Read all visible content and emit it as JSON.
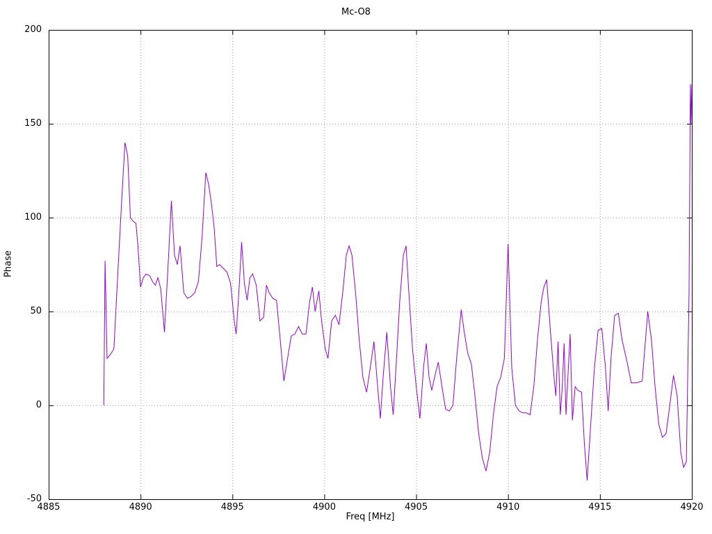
{
  "title": "Mc-O8",
  "xlabel": "Freq [MHz]",
  "ylabel": "Phase",
  "chart_data": {
    "type": "line",
    "title": "Mc-O8",
    "xlabel": "Freq [MHz]",
    "ylabel": "Phase",
    "xlim": [
      4885,
      4920
    ],
    "ylim": [
      -50,
      200
    ],
    "x_ticks": [
      4885,
      4890,
      4895,
      4900,
      4905,
      4910,
      4915,
      4920
    ],
    "y_ticks": [
      -50,
      0,
      50,
      100,
      150,
      200
    ],
    "grid": true,
    "legend": "none",
    "line_color": "#9400d3",
    "grid_color": "#9a9a9a",
    "border_color": "#000000",
    "points": [
      [
        4888.0,
        0
      ],
      [
        4888.07,
        77
      ],
      [
        4888.18,
        25
      ],
      [
        4888.35,
        27
      ],
      [
        4888.55,
        30
      ],
      [
        4888.75,
        68
      ],
      [
        4888.95,
        105
      ],
      [
        4889.15,
        140
      ],
      [
        4889.3,
        133
      ],
      [
        4889.45,
        100
      ],
      [
        4889.6,
        98
      ],
      [
        4889.75,
        97
      ],
      [
        4889.85,
        86
      ],
      [
        4890.0,
        63
      ],
      [
        4890.15,
        68
      ],
      [
        4890.3,
        70
      ],
      [
        4890.5,
        69
      ],
      [
        4890.65,
        66
      ],
      [
        4890.8,
        64
      ],
      [
        4890.95,
        68
      ],
      [
        4891.1,
        62
      ],
      [
        4891.3,
        39
      ],
      [
        4891.5,
        75
      ],
      [
        4891.68,
        109
      ],
      [
        4891.85,
        80
      ],
      [
        4892.0,
        75
      ],
      [
        4892.15,
        85
      ],
      [
        4892.35,
        60
      ],
      [
        4892.55,
        57
      ],
      [
        4892.75,
        58
      ],
      [
        4892.95,
        60
      ],
      [
        4893.15,
        66
      ],
      [
        4893.35,
        90
      ],
      [
        4893.55,
        124
      ],
      [
        4893.7,
        118
      ],
      [
        4893.85,
        108
      ],
      [
        4894.0,
        95
      ],
      [
        4894.15,
        74
      ],
      [
        4894.3,
        75
      ],
      [
        4894.5,
        73
      ],
      [
        4894.7,
        71
      ],
      [
        4894.9,
        65
      ],
      [
        4895.1,
        45
      ],
      [
        4895.2,
        38
      ],
      [
        4895.35,
        60
      ],
      [
        4895.5,
        87
      ],
      [
        4895.65,
        65
      ],
      [
        4895.8,
        56
      ],
      [
        4895.95,
        68
      ],
      [
        4896.1,
        70
      ],
      [
        4896.3,
        64
      ],
      [
        4896.5,
        45
      ],
      [
        4896.7,
        47
      ],
      [
        4896.85,
        64
      ],
      [
        4897.0,
        60
      ],
      [
        4897.2,
        57
      ],
      [
        4897.4,
        56
      ],
      [
        4897.6,
        35
      ],
      [
        4897.8,
        13
      ],
      [
        4898.0,
        25
      ],
      [
        4898.2,
        37
      ],
      [
        4898.4,
        38
      ],
      [
        4898.6,
        42
      ],
      [
        4898.8,
        38
      ],
      [
        4899.0,
        38
      ],
      [
        4899.2,
        55
      ],
      [
        4899.35,
        63
      ],
      [
        4899.5,
        50
      ],
      [
        4899.7,
        61
      ],
      [
        4899.85,
        45
      ],
      [
        4900.05,
        30
      ],
      [
        4900.2,
        25
      ],
      [
        4900.4,
        45
      ],
      [
        4900.6,
        48
      ],
      [
        4900.8,
        43
      ],
      [
        4901.0,
        60
      ],
      [
        4901.2,
        80
      ],
      [
        4901.35,
        85
      ],
      [
        4901.5,
        80
      ],
      [
        4901.7,
        60
      ],
      [
        4901.9,
        35
      ],
      [
        4902.1,
        15
      ],
      [
        4902.3,
        7
      ],
      [
        4902.5,
        20
      ],
      [
        4902.7,
        34
      ],
      [
        4902.9,
        10
      ],
      [
        4903.05,
        -7
      ],
      [
        4903.2,
        15
      ],
      [
        4903.4,
        39
      ],
      [
        4903.6,
        10
      ],
      [
        4903.75,
        -5
      ],
      [
        4903.9,
        20
      ],
      [
        4904.1,
        55
      ],
      [
        4904.3,
        80
      ],
      [
        4904.45,
        85
      ],
      [
        4904.6,
        60
      ],
      [
        4904.8,
        30
      ],
      [
        4905.0,
        10
      ],
      [
        4905.2,
        -7
      ],
      [
        4905.4,
        20
      ],
      [
        4905.55,
        33
      ],
      [
        4905.7,
        15
      ],
      [
        4905.85,
        8
      ],
      [
        4906.0,
        15
      ],
      [
        4906.2,
        23
      ],
      [
        4906.4,
        10
      ],
      [
        4906.6,
        -2
      ],
      [
        4906.8,
        -3
      ],
      [
        4907.0,
        0
      ],
      [
        4907.2,
        25
      ],
      [
        4907.45,
        51
      ],
      [
        4907.6,
        40
      ],
      [
        4907.8,
        28
      ],
      [
        4908.0,
        22
      ],
      [
        4908.2,
        5
      ],
      [
        4908.4,
        -15
      ],
      [
        4908.6,
        -28
      ],
      [
        4908.8,
        -35
      ],
      [
        4909.0,
        -25
      ],
      [
        4909.2,
        -5
      ],
      [
        4909.4,
        10
      ],
      [
        4909.6,
        15
      ],
      [
        4909.8,
        25
      ],
      [
        4910.0,
        86
      ],
      [
        4910.2,
        20
      ],
      [
        4910.4,
        0
      ],
      [
        4910.6,
        -3
      ],
      [
        4910.8,
        -4
      ],
      [
        4911.0,
        -4
      ],
      [
        4911.2,
        -5
      ],
      [
        4911.4,
        10
      ],
      [
        4911.6,
        35
      ],
      [
        4911.8,
        55
      ],
      [
        4911.95,
        63
      ],
      [
        4912.1,
        67
      ],
      [
        4912.3,
        40
      ],
      [
        4912.5,
        15
      ],
      [
        4912.6,
        5
      ],
      [
        4912.72,
        34
      ],
      [
        4912.84,
        -5
      ],
      [
        4912.95,
        10
      ],
      [
        4913.05,
        33
      ],
      [
        4913.15,
        -5
      ],
      [
        4913.28,
        20
      ],
      [
        4913.38,
        38
      ],
      [
        4913.5,
        -8
      ],
      [
        4913.65,
        10
      ],
      [
        4913.8,
        8
      ],
      [
        4914.0,
        7
      ],
      [
        4914.15,
        -20
      ],
      [
        4914.3,
        -40
      ],
      [
        4914.5,
        -10
      ],
      [
        4914.7,
        20
      ],
      [
        4914.9,
        40
      ],
      [
        4915.1,
        41
      ],
      [
        4915.3,
        20
      ],
      [
        4915.45,
        -3
      ],
      [
        4915.6,
        25
      ],
      [
        4915.8,
        48
      ],
      [
        4916.0,
        49
      ],
      [
        4916.2,
        35
      ],
      [
        4916.5,
        22
      ],
      [
        4916.7,
        12
      ],
      [
        4917.0,
        12
      ],
      [
        4917.3,
        13
      ],
      [
        4917.6,
        50
      ],
      [
        4917.8,
        35
      ],
      [
        4918.0,
        10
      ],
      [
        4918.2,
        -10
      ],
      [
        4918.4,
        -17
      ],
      [
        4918.6,
        -15
      ],
      [
        4918.8,
        0
      ],
      [
        4919.0,
        16
      ],
      [
        4919.2,
        5
      ],
      [
        4919.4,
        -25
      ],
      [
        4919.55,
        -33
      ],
      [
        4919.7,
        -30
      ],
      [
        4919.85,
        60
      ],
      [
        4919.92,
        171
      ],
      [
        4919.96,
        150
      ],
      [
        4920.0,
        171
      ]
    ]
  }
}
